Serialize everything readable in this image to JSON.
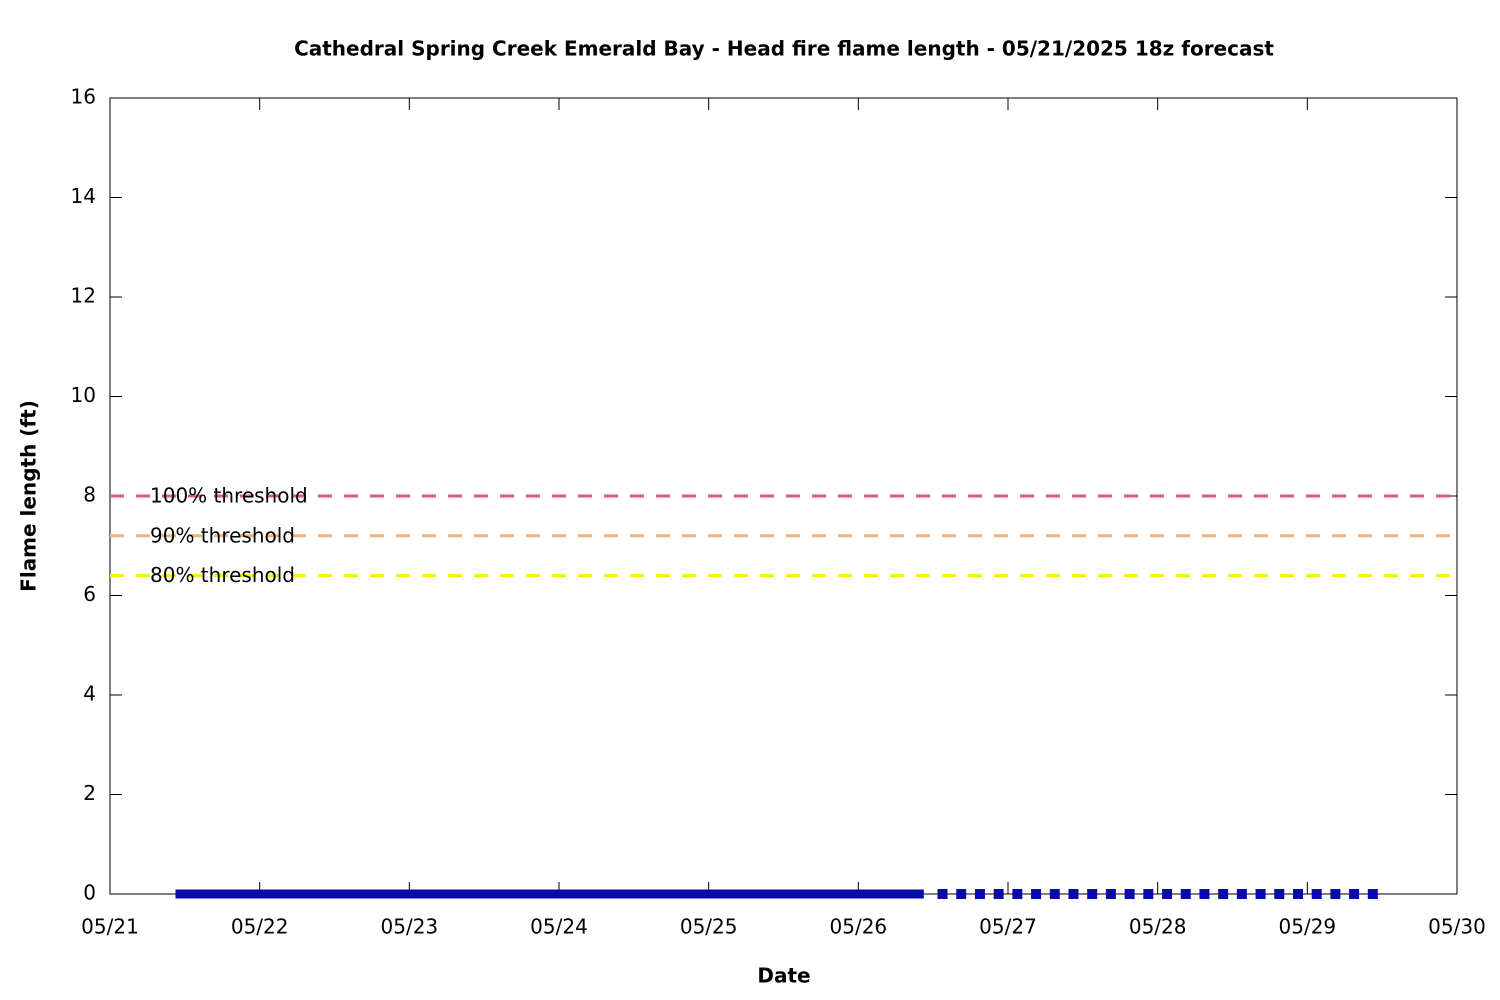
{
  "chart_data": {
    "type": "line",
    "title": "Cathedral Spring Creek Emerald Bay - Head fire flame length - 05/21/2025 18z forecast",
    "x_label": "Date",
    "y_label": "Flame length (ft)",
    "xlim": [
      0,
      9
    ],
    "xticks": [
      {
        "value": 0,
        "label": "05/21"
      },
      {
        "value": 1,
        "label": "05/22"
      },
      {
        "value": 2,
        "label": "05/23"
      },
      {
        "value": 3,
        "label": "05/24"
      },
      {
        "value": 4,
        "label": "05/25"
      },
      {
        "value": 5,
        "label": "05/26"
      },
      {
        "value": 6,
        "label": "05/27"
      },
      {
        "value": 7,
        "label": "05/28"
      },
      {
        "value": 8,
        "label": "05/29"
      },
      {
        "value": 9,
        "label": "05/30"
      }
    ],
    "ylim": [
      0,
      16
    ],
    "yticks": [
      0,
      2,
      4,
      6,
      8,
      10,
      12,
      14,
      16
    ],
    "series": [
      {
        "color": "#0a0aa8",
        "style": "line",
        "x": [
          0.4375,
          0.5625,
          0.6875,
          0.8125,
          0.9375,
          1.0625,
          1.1875,
          1.3125,
          1.4375,
          1.5625,
          1.6875,
          1.8125,
          1.9375,
          2.0625,
          2.1875,
          2.3125,
          2.4375,
          2.5625,
          2.6875,
          2.8125,
          2.9375,
          3.0625,
          3.1875,
          3.3125,
          3.4375,
          3.5625,
          3.6875,
          3.8125,
          3.9375,
          4.0625,
          4.1875,
          4.3125,
          4.4375,
          4.5625,
          4.6875,
          4.8125,
          4.9375,
          5.0625,
          5.1875,
          5.3125,
          5.4375
        ],
        "values": [
          0,
          0,
          0,
          0,
          0,
          0,
          0,
          0,
          0,
          0,
          0,
          0,
          0,
          0,
          0,
          0,
          0,
          0,
          0,
          0,
          0,
          0,
          0,
          0,
          0,
          0,
          0,
          0,
          0,
          0,
          0,
          0,
          0,
          0,
          0,
          0,
          0,
          0,
          0,
          0,
          0
        ]
      },
      {
        "color": "#0a0aa8",
        "style": "points",
        "x": [
          5.5625,
          5.6875,
          5.8125,
          5.9375,
          6.0625,
          6.1875,
          6.3125,
          6.4375,
          6.5625,
          6.6875,
          6.8125,
          6.9375,
          7.0625,
          7.1875,
          7.3125,
          7.4375,
          7.5625,
          7.6875,
          7.8125,
          7.9375,
          8.0625,
          8.1875,
          8.3125,
          8.4375
        ],
        "values": [
          0,
          0,
          0,
          0,
          0,
          0,
          0,
          0,
          0,
          0,
          0,
          0,
          0,
          0,
          0,
          0,
          0,
          0,
          0,
          0,
          0,
          0,
          0,
          0
        ]
      }
    ],
    "thresholds": [
      {
        "name": "100% threshold",
        "value": 8,
        "color": "#d95f7e"
      },
      {
        "name": "90% threshold",
        "value": 7.2,
        "color": "#f0b27a"
      },
      {
        "name": "80% threshold",
        "value": 6.4,
        "color": "#f5f000"
      }
    ]
  }
}
